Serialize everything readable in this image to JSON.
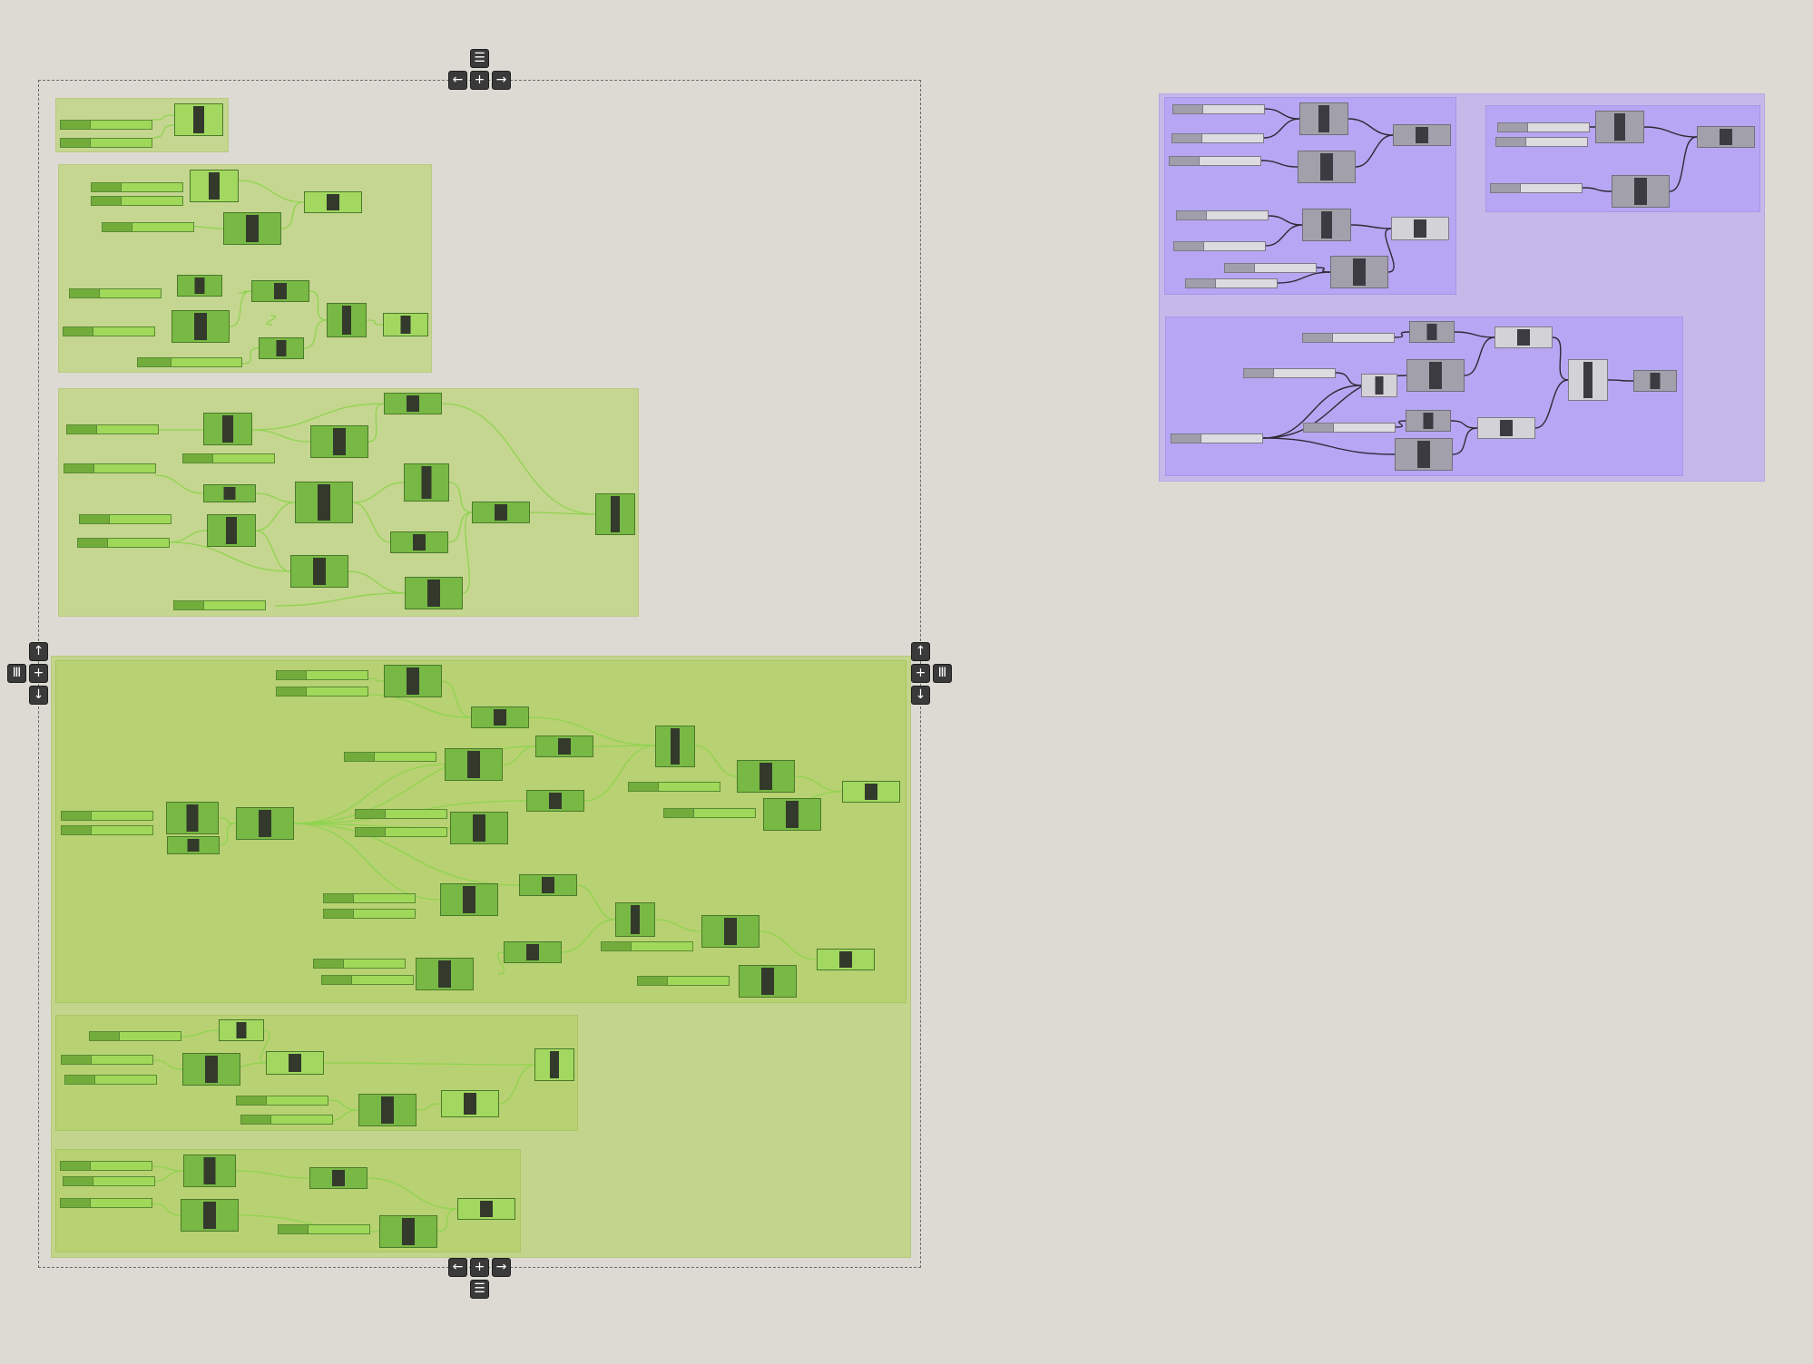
{
  "canvas": {
    "background": "#dddad4",
    "theme": {
      "green_group": "#c5d690",
      "green_node": "#78b844",
      "green_node_light": "#a2d860",
      "green_wire": "#8fd450",
      "purple_group": "#c6b9ea",
      "purple_inner_group": "#b7a6f3",
      "gray_node": "#a2a1ab",
      "dark_wire": "#2c2b35"
    }
  },
  "selection": {
    "handles": {
      "top_menu": "menu-icon",
      "left_arrow": "arrow-left-icon",
      "move": "move-icon",
      "right_arrow": "arrow-right-icon",
      "up_arrow": "arrow-up-icon",
      "down_arrow": "arrow-down-icon",
      "side_menu": "columns-icon"
    },
    "glyphs": {
      "menu": "☰",
      "left": "←",
      "right": "→",
      "up": "↑",
      "down": "↓",
      "move": "+",
      "columns": "Ⅲ"
    }
  }
}
